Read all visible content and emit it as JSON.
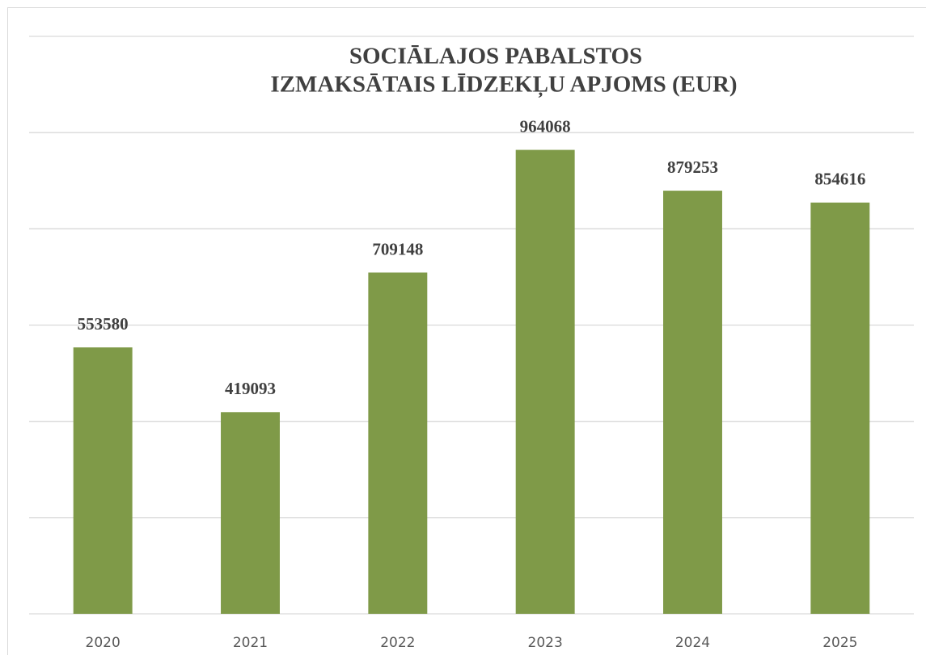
{
  "chart_data": {
    "type": "bar",
    "title": [
      "SOCIĀLAJOS PABALSTOS",
      "IZMAKSĀTAIS LĪDZEKĻU APJOMS (EUR)"
    ],
    "categories": [
      "2020",
      "2021",
      "2022",
      "2023",
      "2024",
      "2025"
    ],
    "values": [
      553580,
      419093,
      709148,
      964068,
      879253,
      854616
    ],
    "color": "#7f9a48",
    "ylim": [
      0,
      1200000
    ],
    "yticks": [
      0,
      200000,
      400000,
      600000,
      800000,
      1000000,
      1200000
    ],
    "grid": true
  }
}
